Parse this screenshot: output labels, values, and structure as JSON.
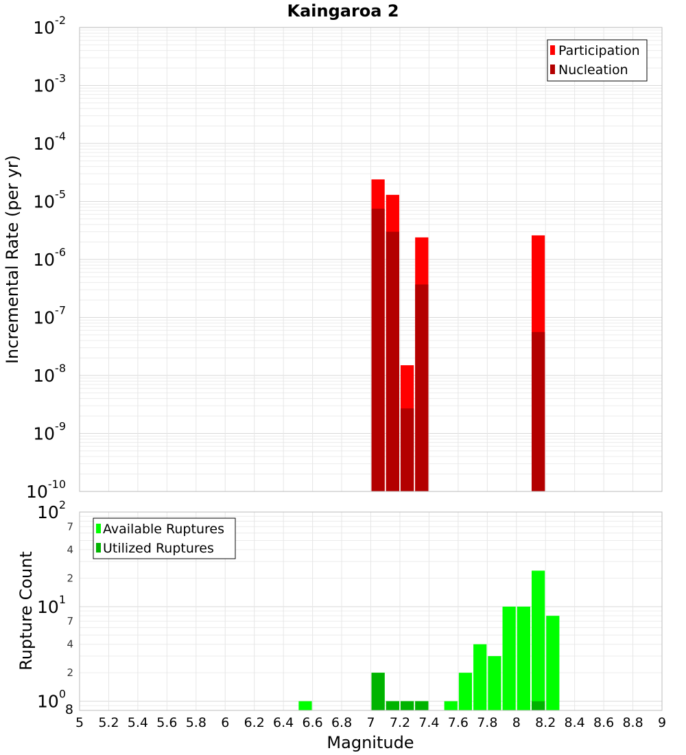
{
  "chart_data": [
    {
      "type": "bar",
      "title": "Kaingaroa 2",
      "xlabel": "",
      "ylabel": "Incremental Rate (per yr)",
      "y_scale": "log",
      "ylim": [
        1e-10,
        0.01
      ],
      "xlim": [
        5,
        9
      ],
      "grid": true,
      "legend_position": "top-right",
      "y_ticks": [
        {
          "base": "10",
          "exp": "-2"
        },
        {
          "base": "10",
          "exp": "-3"
        },
        {
          "base": "10",
          "exp": "-4"
        },
        {
          "base": "10",
          "exp": "-5"
        },
        {
          "base": "10",
          "exp": "-6"
        },
        {
          "base": "10",
          "exp": "-7"
        },
        {
          "base": "10",
          "exp": "-8"
        },
        {
          "base": "10",
          "exp": "-9"
        },
        {
          "base": "10",
          "exp": "-10"
        }
      ],
      "series": [
        {
          "name": "Participation",
          "color": "#ff0000",
          "x": [
            7.05,
            7.15,
            7.25,
            7.35,
            8.15
          ],
          "values": [
            2.4e-05,
            1.3e-05,
            1.5e-08,
            2.4e-06,
            2.6e-06
          ]
        },
        {
          "name": "Nucleation",
          "color": "#b30000",
          "x": [
            7.05,
            7.15,
            7.25,
            7.35,
            8.15
          ],
          "values": [
            7.5e-06,
            3e-06,
            2.7e-09,
            3.7e-07,
            5.6e-08
          ]
        }
      ]
    },
    {
      "type": "bar",
      "title": "",
      "xlabel": "Magnitude",
      "ylabel": "Rupture Count",
      "y_scale": "log",
      "ylim": [
        0.8,
        100
      ],
      "xlim": [
        5,
        9
      ],
      "grid": true,
      "legend_position": "top-left",
      "x_tick_labels": [
        "5",
        "5.2",
        "5.4",
        "5.6",
        "5.8",
        "6",
        "6.2",
        "6.4",
        "6.6",
        "6.8",
        "7",
        "7.2",
        "7.4",
        "7.6",
        "7.8",
        "8",
        "8.2",
        "8.4",
        "8.6",
        "8.8",
        "9"
      ],
      "y_ticks": [
        {
          "base": "10",
          "exp": "2"
        },
        {
          "base": "10",
          "exp": "1"
        },
        {
          "base": "10",
          "exp": "0"
        }
      ],
      "y_minor_labels": [
        "7",
        "4",
        "2",
        "7",
        "4",
        "2",
        "8"
      ],
      "series": [
        {
          "name": "Available Ruptures",
          "color": "#00ff00",
          "x": [
            6.55,
            7.05,
            7.15,
            7.25,
            7.35,
            7.55,
            7.65,
            7.75,
            7.85,
            7.95,
            8.05,
            8.15,
            8.25
          ],
          "values": [
            1,
            2,
            1,
            1,
            1,
            1,
            2,
            4,
            3,
            10,
            10,
            24,
            8
          ]
        },
        {
          "name": "Utilized Ruptures",
          "color": "#00b300",
          "x": [
            7.05,
            7.15,
            7.25,
            7.35,
            8.15
          ],
          "values": [
            2,
            1,
            1,
            1,
            1
          ]
        }
      ]
    }
  ]
}
